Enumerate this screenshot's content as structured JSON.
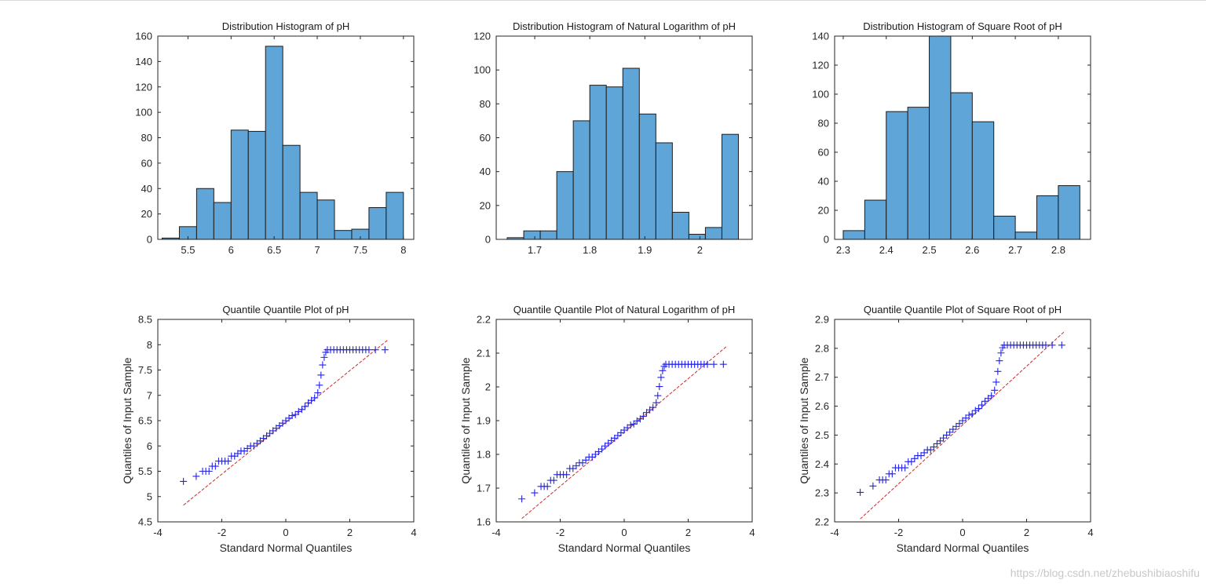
{
  "watermark": "https://blog.csdn.net/zhebushibiaoshifu",
  "colors": {
    "bar_fill": "#5fa5d8",
    "bar_edge": "#1c1c1c",
    "qq_marker": "#2323e6",
    "qq_line": "#cc2b2b",
    "axis": "#262626"
  },
  "chart_data": [
    {
      "type": "bar",
      "title": "Distribution Histogram of pH",
      "xlabel": "",
      "ylabel": "",
      "xlim": [
        5.15,
        8.12
      ],
      "ylim": [
        0,
        160
      ],
      "xticks": [
        5.5,
        6,
        6.5,
        7,
        7.5,
        8
      ],
      "xtick_labels": [
        "5.5",
        "6",
        "6.5",
        "7",
        "7.5",
        "8"
      ],
      "yticks": [
        0,
        20,
        40,
        60,
        80,
        100,
        120,
        140,
        160
      ],
      "ytick_labels": [
        "0",
        "20",
        "40",
        "60",
        "80",
        "100",
        "120",
        "140",
        "160"
      ],
      "bin_edges": [
        5.2,
        5.4,
        5.6,
        5.8,
        6.0,
        6.2,
        6.4,
        6.6,
        6.8,
        7.0,
        7.2,
        7.4,
        7.6,
        7.8,
        8.0
      ],
      "values": [
        1,
        10,
        40,
        29,
        86,
        85,
        152,
        74,
        37,
        31,
        7,
        8,
        25,
        37
      ]
    },
    {
      "type": "bar",
      "title": "Distribution Histogram of Natural Logarithm of pH",
      "xlabel": "",
      "ylabel": "",
      "xlim": [
        1.63,
        2.095
      ],
      "ylim": [
        0,
        120
      ],
      "xticks": [
        1.7,
        1.8,
        1.9,
        2.0
      ],
      "xtick_labels": [
        "1.7",
        "1.8",
        "1.9",
        "2"
      ],
      "yticks": [
        0,
        20,
        40,
        60,
        80,
        100,
        120
      ],
      "ytick_labels": [
        "0",
        "20",
        "40",
        "60",
        "80",
        "100",
        "120"
      ],
      "bin_edges": [
        1.65,
        1.68,
        1.71,
        1.74,
        1.77,
        1.8,
        1.83,
        1.86,
        1.89,
        1.92,
        1.95,
        1.98,
        2.01,
        2.04,
        2.07
      ],
      "values": [
        1,
        5,
        5,
        40,
        70,
        91,
        90,
        101,
        74,
        57,
        16,
        3,
        7,
        62
      ]
    },
    {
      "type": "bar",
      "title": "Distribution Histogram of Square Root of pH",
      "xlabel": "",
      "ylabel": "",
      "xlim": [
        2.28,
        2.875
      ],
      "ylim": [
        0,
        140
      ],
      "xticks": [
        2.3,
        2.4,
        2.5,
        2.6,
        2.7,
        2.8
      ],
      "xtick_labels": [
        "2.3",
        "2.4",
        "2.5",
        "2.6",
        "2.7",
        "2.8"
      ],
      "yticks": [
        0,
        20,
        40,
        60,
        80,
        100,
        120,
        140
      ],
      "ytick_labels": [
        "0",
        "20",
        "40",
        "60",
        "80",
        "100",
        "120",
        "140"
      ],
      "bin_edges": [
        2.3,
        2.35,
        2.4,
        2.45,
        2.5,
        2.55,
        2.6,
        2.65,
        2.7,
        2.75,
        2.8,
        2.85
      ],
      "values": [
        6,
        27,
        88,
        91,
        140,
        101,
        81,
        16,
        5,
        30,
        37
      ]
    },
    {
      "type": "scatter",
      "title": "Quantile Quantile Plot of pH",
      "xlabel": "Standard Normal Quantiles",
      "ylabel": "Quantiles of Input Sample",
      "xlim": [
        -4,
        4
      ],
      "ylim": [
        4.5,
        8.5
      ],
      "xticks": [
        -4,
        -2,
        0,
        2,
        4
      ],
      "xtick_labels": [
        "-4",
        "-2",
        "0",
        "2",
        "4"
      ],
      "yticks": [
        4.5,
        5,
        5.5,
        6,
        6.5,
        7,
        7.5,
        8,
        8.5
      ],
      "ytick_labels": [
        "4.5",
        "5",
        "5.5",
        "6",
        "6.5",
        "7",
        "7.5",
        "8",
        "8.5"
      ],
      "x": [
        -3.2,
        -2.8,
        -2.6,
        -2.5,
        -2.4,
        -2.3,
        -2.2,
        -2.1,
        -2.0,
        -1.9,
        -1.8,
        -1.7,
        -1.6,
        -1.5,
        -1.4,
        -1.3,
        -1.2,
        -1.1,
        -1.0,
        -0.9,
        -0.8,
        -0.7,
        -0.6,
        -0.5,
        -0.4,
        -0.3,
        -0.2,
        -0.1,
        0.0,
        0.1,
        0.2,
        0.3,
        0.4,
        0.5,
        0.6,
        0.7,
        0.8,
        0.9,
        1.0,
        1.05,
        1.1,
        1.15,
        1.2,
        1.25,
        1.3,
        1.4,
        1.5,
        1.6,
        1.7,
        1.8,
        1.9,
        2.0,
        2.1,
        2.2,
        2.3,
        2.4,
        2.5,
        2.6,
        2.8,
        3.1
      ],
      "y": [
        5.3,
        5.4,
        5.5,
        5.5,
        5.5,
        5.6,
        5.6,
        5.7,
        5.7,
        5.7,
        5.7,
        5.8,
        5.8,
        5.85,
        5.9,
        5.9,
        5.95,
        6.0,
        6.0,
        6.05,
        6.1,
        6.15,
        6.2,
        6.25,
        6.3,
        6.35,
        6.4,
        6.45,
        6.5,
        6.55,
        6.6,
        6.62,
        6.68,
        6.72,
        6.78,
        6.85,
        6.9,
        6.95,
        7.05,
        7.2,
        7.4,
        7.6,
        7.75,
        7.85,
        7.9,
        7.9,
        7.9,
        7.9,
        7.9,
        7.9,
        7.9,
        7.9,
        7.9,
        7.9,
        7.9,
        7.9,
        7.9,
        7.9,
        7.9,
        7.9
      ],
      "ref_line": {
        "x": [
          -3.2,
          3.2
        ],
        "y": [
          4.83,
          8.1
        ]
      }
    },
    {
      "type": "scatter",
      "title": "Quantile Quantile Plot of Natural Logarithm of pH",
      "xlabel": "Standard Normal Quantiles",
      "ylabel": "Quantiles of Input Sample",
      "xlim": [
        -4,
        4
      ],
      "ylim": [
        1.6,
        2.2
      ],
      "xticks": [
        -4,
        -2,
        0,
        2,
        4
      ],
      "xtick_labels": [
        "-4",
        "-2",
        "0",
        "2",
        "4"
      ],
      "yticks": [
        1.6,
        1.7,
        1.8,
        1.9,
        2.0,
        2.1,
        2.2
      ],
      "ytick_labels": [
        "1.6",
        "1.7",
        "1.8",
        "1.9",
        "2",
        "2.1",
        "2.2"
      ],
      "x": [
        -3.2,
        -2.8,
        -2.6,
        -2.5,
        -2.4,
        -2.3,
        -2.2,
        -2.1,
        -2.0,
        -1.9,
        -1.8,
        -1.7,
        -1.6,
        -1.5,
        -1.4,
        -1.3,
        -1.2,
        -1.1,
        -1.0,
        -0.9,
        -0.8,
        -0.7,
        -0.6,
        -0.5,
        -0.4,
        -0.3,
        -0.2,
        -0.1,
        0.0,
        0.1,
        0.2,
        0.3,
        0.4,
        0.5,
        0.6,
        0.7,
        0.8,
        0.9,
        1.0,
        1.05,
        1.1,
        1.15,
        1.2,
        1.25,
        1.3,
        1.4,
        1.5,
        1.6,
        1.7,
        1.8,
        1.9,
        2.0,
        2.1,
        2.2,
        2.3,
        2.4,
        2.5,
        2.6,
        2.8,
        3.1
      ],
      "y": [
        1.668,
        1.686,
        1.705,
        1.705,
        1.705,
        1.723,
        1.723,
        1.74,
        1.74,
        1.74,
        1.74,
        1.758,
        1.758,
        1.766,
        1.775,
        1.775,
        1.783,
        1.792,
        1.792,
        1.8,
        1.808,
        1.816,
        1.825,
        1.833,
        1.841,
        1.848,
        1.856,
        1.864,
        1.872,
        1.879,
        1.887,
        1.89,
        1.899,
        1.905,
        1.913,
        1.924,
        1.932,
        1.939,
        1.953,
        1.974,
        2.001,
        2.028,
        2.048,
        2.061,
        2.067,
        2.067,
        2.067,
        2.067,
        2.067,
        2.067,
        2.067,
        2.067,
        2.067,
        2.067,
        2.067,
        2.067,
        2.067,
        2.067,
        2.067,
        2.067
      ],
      "ref_line": {
        "x": [
          -3.2,
          3.2
        ],
        "y": [
          1.61,
          2.12
        ]
      }
    },
    {
      "type": "scatter",
      "title": "Quantile Quantile Plot of Square Root of pH",
      "xlabel": "Standard Normal Quantiles",
      "ylabel": "Quantiles of Input Sample",
      "xlim": [
        -4,
        4
      ],
      "ylim": [
        2.2,
        2.9
      ],
      "xticks": [
        -4,
        -2,
        0,
        2,
        4
      ],
      "xtick_labels": [
        "-4",
        "-2",
        "0",
        "2",
        "4"
      ],
      "yticks": [
        2.2,
        2.3,
        2.4,
        2.5,
        2.6,
        2.7,
        2.8,
        2.9
      ],
      "ytick_labels": [
        "2.2",
        "2.3",
        "2.4",
        "2.5",
        "2.6",
        "2.7",
        "2.8",
        "2.9"
      ],
      "x": [
        -3.2,
        -2.8,
        -2.6,
        -2.5,
        -2.4,
        -2.3,
        -2.2,
        -2.1,
        -2.0,
        -1.9,
        -1.8,
        -1.7,
        -1.6,
        -1.5,
        -1.4,
        -1.3,
        -1.2,
        -1.1,
        -1.0,
        -0.9,
        -0.8,
        -0.7,
        -0.6,
        -0.5,
        -0.4,
        -0.3,
        -0.2,
        -0.1,
        0.0,
        0.1,
        0.2,
        0.3,
        0.4,
        0.5,
        0.6,
        0.7,
        0.8,
        0.9,
        1.0,
        1.05,
        1.1,
        1.15,
        1.2,
        1.25,
        1.3,
        1.4,
        1.5,
        1.6,
        1.7,
        1.8,
        1.9,
        2.0,
        2.1,
        2.2,
        2.3,
        2.4,
        2.5,
        2.6,
        2.8,
        3.1
      ],
      "y": [
        2.302,
        2.324,
        2.345,
        2.345,
        2.345,
        2.366,
        2.366,
        2.387,
        2.387,
        2.387,
        2.387,
        2.408,
        2.408,
        2.419,
        2.429,
        2.429,
        2.439,
        2.449,
        2.449,
        2.459,
        2.47,
        2.48,
        2.49,
        2.5,
        2.51,
        2.52,
        2.53,
        2.54,
        2.55,
        2.559,
        2.569,
        2.573,
        2.585,
        2.592,
        2.604,
        2.617,
        2.627,
        2.636,
        2.655,
        2.683,
        2.72,
        2.757,
        2.784,
        2.802,
        2.811,
        2.811,
        2.811,
        2.811,
        2.811,
        2.811,
        2.811,
        2.811,
        2.811,
        2.811,
        2.811,
        2.811,
        2.811,
        2.811,
        2.811,
        2.811
      ],
      "ref_line": {
        "x": [
          -3.2,
          3.2
        ],
        "y": [
          2.21,
          2.86
        ]
      }
    }
  ]
}
